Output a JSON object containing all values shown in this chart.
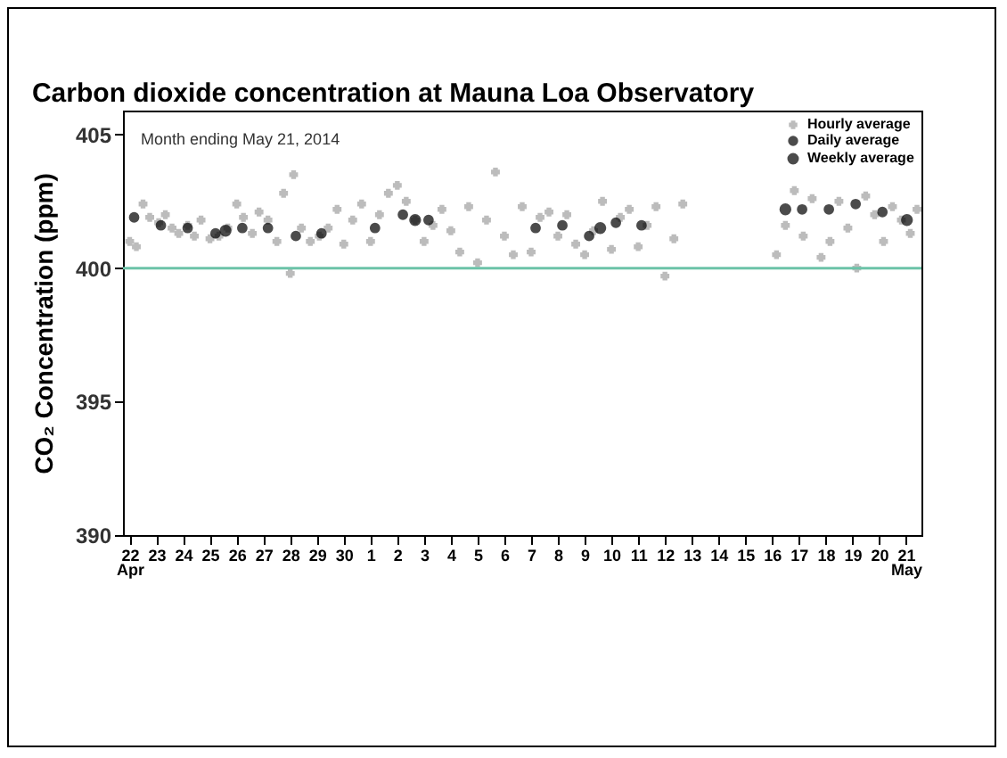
{
  "chart_data": {
    "type": "scatter",
    "title": "Carbon dioxide concentration at Mauna Loa Observatory",
    "ylabel": "CO₂ Concentration (ppm)",
    "annotations": [
      "Month ending May 21, 2014"
    ],
    "xlim": [
      "2014-04-21T18:00",
      "2014-05-21T14:00"
    ],
    "xticks": [
      {
        "value": "2014-04-22",
        "label": "22\nApr"
      },
      {
        "value": "2014-04-23",
        "label": "23"
      },
      {
        "value": "2014-04-24",
        "label": "24"
      },
      {
        "value": "2014-04-25",
        "label": "25"
      },
      {
        "value": "2014-04-26",
        "label": "26"
      },
      {
        "value": "2014-04-27",
        "label": "27"
      },
      {
        "value": "2014-04-28",
        "label": "28"
      },
      {
        "value": "2014-04-29",
        "label": "29"
      },
      {
        "value": "2014-04-30",
        "label": "30"
      },
      {
        "value": "2014-05-01",
        "label": "1"
      },
      {
        "value": "2014-05-02",
        "label": "2"
      },
      {
        "value": "2014-05-03",
        "label": "3"
      },
      {
        "value": "2014-05-04",
        "label": "4"
      },
      {
        "value": "2014-05-05",
        "label": "5"
      },
      {
        "value": "2014-05-06",
        "label": "6"
      },
      {
        "value": "2014-05-07",
        "label": "7"
      },
      {
        "value": "2014-05-08",
        "label": "8"
      },
      {
        "value": "2014-05-09",
        "label": "9"
      },
      {
        "value": "2014-05-10",
        "label": "10"
      },
      {
        "value": "2014-05-11",
        "label": "11"
      },
      {
        "value": "2014-05-12",
        "label": "12"
      },
      {
        "value": "2014-05-13",
        "label": "13"
      },
      {
        "value": "2014-05-14",
        "label": "14"
      },
      {
        "value": "2014-05-15",
        "label": "15"
      },
      {
        "value": "2014-05-16",
        "label": "16"
      },
      {
        "value": "2014-05-17",
        "label": "17"
      },
      {
        "value": "2014-05-18",
        "label": "18"
      },
      {
        "value": "2014-05-19",
        "label": "19"
      },
      {
        "value": "2014-05-20",
        "label": "20"
      },
      {
        "value": "2014-05-21",
        "label": "21\nMay"
      }
    ],
    "ylim": [
      390,
      405.9
    ],
    "yticks": [
      390,
      395,
      400,
      405
    ],
    "ref_lines": [
      {
        "axis": "y",
        "value": 400,
        "color": "#6cc3a8"
      }
    ],
    "legend": "top right",
    "series": [
      {
        "name": "Hourly average",
        "color": "#a0a0a0",
        "marker": "cross",
        "x": [
          "2014-04-22T00:00",
          "2014-04-22T06:00",
          "2014-04-22T12:00",
          "2014-04-22T18:00",
          "2014-04-23T02:00",
          "2014-04-23T08:00",
          "2014-04-23T14:00",
          "2014-04-23T20:00",
          "2014-04-24T04:00",
          "2014-04-24T10:00",
          "2014-04-24T16:00",
          "2014-04-25T00:00",
          "2014-04-25T08:00",
          "2014-04-25T16:00",
          "2014-04-26T00:00",
          "2014-04-26T06:00",
          "2014-04-26T14:00",
          "2014-04-26T20:00",
          "2014-04-27T04:00",
          "2014-04-27T12:00",
          "2014-04-27T18:00",
          "2014-04-28T00:00",
          "2014-04-28T03:00",
          "2014-04-28T10:00",
          "2014-04-28T18:00",
          "2014-04-29T02:00",
          "2014-04-29T10:00",
          "2014-04-29T18:00",
          "2014-04-30T00:00",
          "2014-04-30T08:00",
          "2014-04-30T16:00",
          "2014-05-01T00:00",
          "2014-05-01T08:00",
          "2014-05-01T16:00",
          "2014-05-02T00:00",
          "2014-05-02T08:00",
          "2014-05-02T16:00",
          "2014-05-03T00:00",
          "2014-05-03T08:00",
          "2014-05-03T16:00",
          "2014-05-04T00:00",
          "2014-05-04T08:00",
          "2014-05-04T16:00",
          "2014-05-05T00:00",
          "2014-05-05T08:00",
          "2014-05-05T16:00",
          "2014-05-06T00:00",
          "2014-05-06T08:00",
          "2014-05-06T16:00",
          "2014-05-07T00:00",
          "2014-05-07T08:00",
          "2014-05-07T16:00",
          "2014-05-08T00:00",
          "2014-05-08T08:00",
          "2014-05-08T16:00",
          "2014-05-09T00:00",
          "2014-05-09T08:00",
          "2014-05-09T16:00",
          "2014-05-10T00:00",
          "2014-05-10T08:00",
          "2014-05-10T16:00",
          "2014-05-11T00:00",
          "2014-05-11T08:00",
          "2014-05-11T16:00",
          "2014-05-12T00:00",
          "2014-05-12T08:00",
          "2014-05-12T16:00",
          "2014-05-16T04:00",
          "2014-05-16T12:00",
          "2014-05-16T20:00",
          "2014-05-17T04:00",
          "2014-05-17T12:00",
          "2014-05-17T20:00",
          "2014-05-18T04:00",
          "2014-05-18T12:00",
          "2014-05-18T20:00",
          "2014-05-19T04:00",
          "2014-05-19T12:00",
          "2014-05-19T20:00",
          "2014-05-20T04:00",
          "2014-05-20T12:00",
          "2014-05-20T20:00",
          "2014-05-21T04:00",
          "2014-05-21T10:00"
        ],
        "values": [
          401.0,
          400.8,
          402.4,
          401.9,
          401.7,
          402.0,
          401.5,
          401.3,
          401.6,
          401.2,
          401.8,
          401.1,
          401.2,
          401.5,
          402.4,
          401.9,
          401.3,
          402.1,
          401.8,
          401.0,
          402.8,
          399.8,
          403.5,
          401.5,
          401.0,
          401.2,
          401.5,
          402.2,
          400.9,
          401.8,
          402.4,
          401.0,
          402.0,
          402.8,
          403.1,
          402.5,
          401.8,
          401.0,
          401.6,
          402.2,
          401.4,
          400.6,
          402.3,
          400.2,
          401.8,
          403.6,
          401.2,
          400.5,
          402.3,
          400.6,
          401.9,
          402.1,
          401.2,
          402.0,
          400.9,
          400.5,
          401.4,
          402.5,
          400.7,
          401.9,
          402.2,
          400.8,
          401.6,
          402.3,
          399.7,
          401.1,
          402.4,
          400.5,
          401.6,
          402.9,
          401.2,
          402.6,
          400.4,
          401.0,
          402.5,
          401.5,
          400.0,
          402.7,
          402.0,
          401.0,
          402.3,
          401.8,
          401.3,
          402.2
        ]
      },
      {
        "name": "Daily average",
        "color": "#000000",
        "marker": "circle",
        "x": [
          "2014-04-22T04:00",
          "2014-04-23T04:00",
          "2014-04-24T04:00",
          "2014-04-25T05:00",
          "2014-04-26T05:00",
          "2014-04-27T04:00",
          "2014-04-28T05:00",
          "2014-04-29T04:00",
          "2014-05-01T04:00",
          "2014-05-02T05:00",
          "2014-05-03T04:00",
          "2014-05-07T04:00",
          "2014-05-08T04:00",
          "2014-05-09T04:00",
          "2014-05-10T04:00",
          "2014-05-11T03:00",
          "2014-05-17T03:00",
          "2014-05-18T03:00",
          "2014-05-19T03:00",
          "2014-05-20T03:00"
        ],
        "values": [
          401.9,
          401.6,
          401.5,
          401.3,
          401.5,
          401.5,
          401.2,
          401.3,
          401.5,
          402.0,
          401.8,
          401.5,
          401.6,
          401.2,
          401.7,
          401.6,
          402.2,
          402.2,
          402.4,
          402.1
        ]
      },
      {
        "name": "Weekly average",
        "color": "#000000",
        "marker": "circle",
        "x": [
          "2014-04-25T14:00",
          "2014-05-02T16:00",
          "2014-05-09T14:00",
          "2014-05-16T12:00",
          "2014-05-21T01:00"
        ],
        "values": [
          401.4,
          401.8,
          401.5,
          402.2,
          401.8
        ]
      }
    ]
  }
}
